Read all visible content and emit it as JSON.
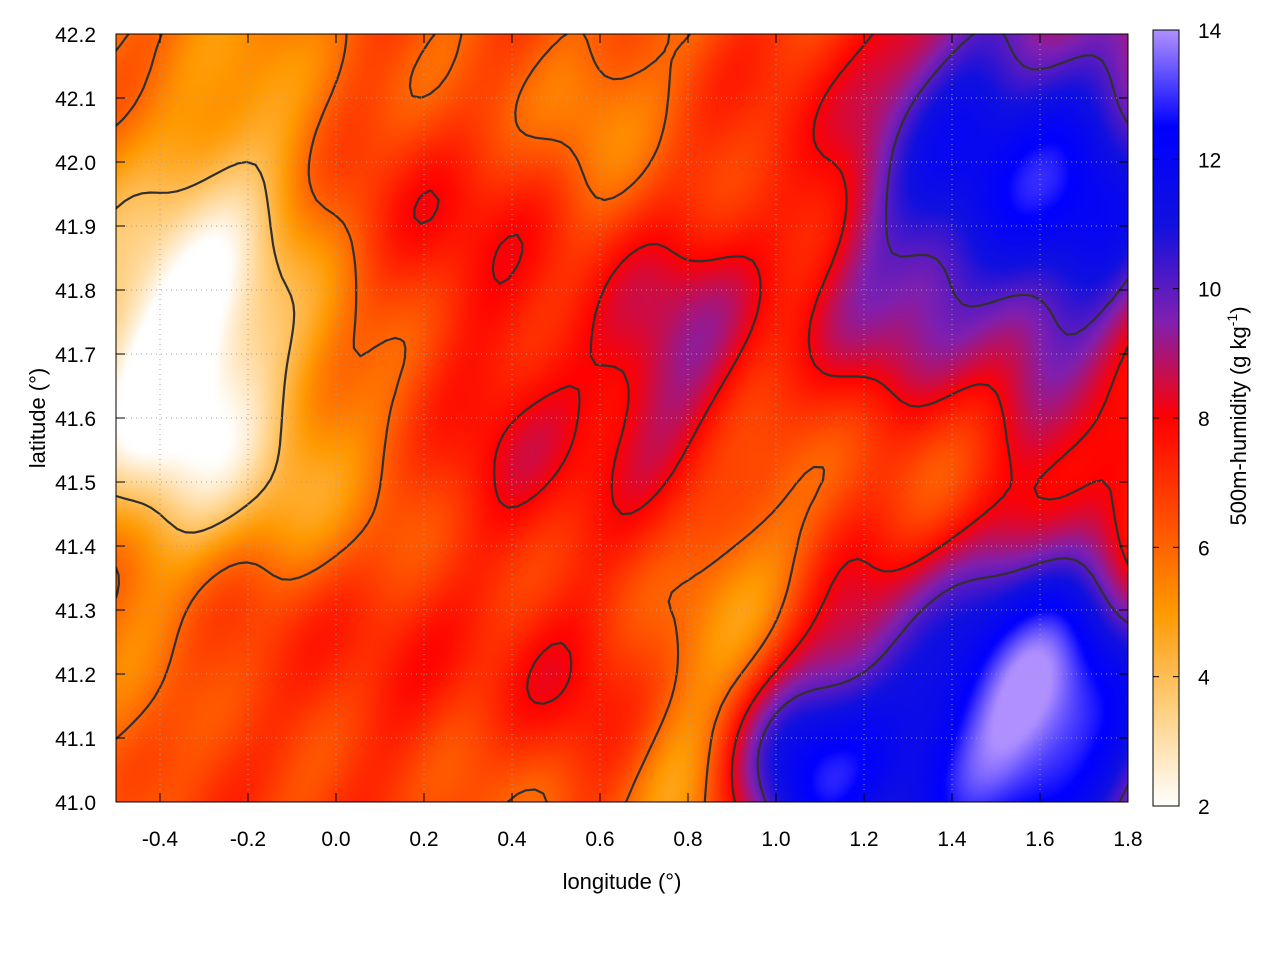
{
  "chart_data": {
    "type": "heatmap",
    "title": "",
    "xlabel": "longitude (°)",
    "ylabel": "latitude (°)",
    "colorbar_label": "500m-humidity (g kg-1)",
    "colorbar_label_parts": {
      "main": "500m-humidity (g kg",
      "sup": "-1",
      "tail": ")"
    },
    "xlim": [
      -0.5,
      1.8
    ],
    "ylim": [
      41.0,
      42.2
    ],
    "zlim": [
      2,
      14
    ],
    "xticks": [
      -0.4,
      -0.2,
      0.0,
      0.2,
      0.4,
      0.6,
      0.8,
      1.0,
      1.2,
      1.4,
      1.6,
      1.8
    ],
    "xtick_labels": [
      "-0.4",
      "-0.2",
      "0.0",
      "0.2",
      "0.4",
      "0.6",
      "0.8",
      "1.0",
      "1.2",
      "1.4",
      "1.6",
      "1.8"
    ],
    "yticks": [
      41.0,
      41.1,
      41.2,
      41.3,
      41.4,
      41.5,
      41.6,
      41.7,
      41.8,
      41.9,
      42.0,
      42.1,
      42.2
    ],
    "ytick_labels": [
      "41.0",
      "41.1",
      "41.2",
      "41.3",
      "41.4",
      "41.5",
      "41.6",
      "41.7",
      "41.8",
      "41.9",
      "42.0",
      "42.1",
      "42.2"
    ],
    "zticks": [
      2,
      4,
      6,
      8,
      10,
      12,
      14
    ],
    "ztick_labels": [
      "2",
      "4",
      "6",
      "8",
      "10",
      "12",
      "14"
    ],
    "grid": true,
    "colormap": [
      "#ffffff",
      "#ffcf80",
      "#ff9900",
      "#ff4a00",
      "#ff0000",
      "#8020b0",
      "#1010e0",
      "#0000ff",
      "#b090ff"
    ],
    "contour_color": "#303030",
    "field_approximation": {
      "base": 6.2,
      "features": [
        {
          "lon": -0.42,
          "lat": 41.65,
          "value": -3.8,
          "radius": 0.22
        },
        {
          "lon": -0.25,
          "lat": 41.85,
          "value": -2.5,
          "radius": 0.3
        },
        {
          "lon": -0.15,
          "lat": 41.5,
          "value": -1.6,
          "radius": 0.18
        },
        {
          "lon": 0.75,
          "lat": 41.7,
          "value": 2.6,
          "radius": 0.22
        },
        {
          "lon": 1.45,
          "lat": 42.0,
          "value": 4.0,
          "radius": 0.35
        },
        {
          "lon": 1.7,
          "lat": 41.95,
          "value": 3.5,
          "radius": 0.28
        },
        {
          "lon": 1.4,
          "lat": 41.1,
          "value": 5.5,
          "radius": 0.32
        },
        {
          "lon": 1.7,
          "lat": 41.15,
          "value": 5.0,
          "radius": 0.25
        },
        {
          "lon": 1.05,
          "lat": 41.05,
          "value": 4.2,
          "radius": 0.18
        },
        {
          "lon": 0.2,
          "lat": 41.9,
          "value": 1.8,
          "radius": 0.22
        },
        {
          "lon": 0.45,
          "lat": 41.55,
          "value": 1.5,
          "radius": 0.2
        },
        {
          "lon": 0.0,
          "lat": 41.2,
          "value": 1.3,
          "radius": 0.25
        },
        {
          "lon": 0.5,
          "lat": 41.2,
          "value": 1.6,
          "radius": 0.18
        },
        {
          "lon": 1.3,
          "lat": 41.5,
          "value": -1.2,
          "radius": 0.22
        },
        {
          "lon": 0.95,
          "lat": 41.3,
          "value": -1.5,
          "radius": 0.18
        },
        {
          "lon": 0.8,
          "lat": 41.05,
          "value": -1.6,
          "radius": 0.14
        },
        {
          "lon": 0.55,
          "lat": 42.1,
          "value": -1.0,
          "radius": 0.12
        },
        {
          "lon": 1.2,
          "lat": 41.75,
          "value": 1.2,
          "radius": 0.2
        }
      ]
    },
    "contour_levels": [
      4,
      6,
      8,
      10
    ]
  }
}
